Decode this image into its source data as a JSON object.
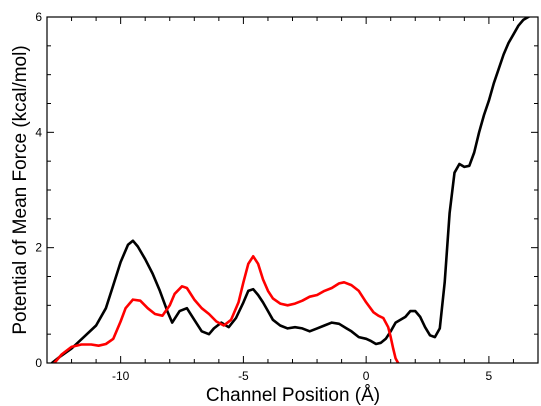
{
  "chart_data": {
    "type": "line",
    "xlabel": "Channel Position (Å)",
    "ylabel": "Potential of Mean Force (kcal/mol)",
    "xlim": [
      -13,
      7
    ],
    "ylim": [
      0,
      6
    ],
    "x_ticks": [
      -10,
      -5,
      0,
      5
    ],
    "x_tick_labels": [
      "-10",
      "-5",
      "0",
      "5"
    ],
    "y_ticks": [
      0,
      2,
      4,
      6
    ],
    "y_tick_labels": [
      "0",
      "2",
      "4",
      "6"
    ],
    "grid": false,
    "series": [
      {
        "color": "#000000",
        "x": [
          -12.8,
          -12.5,
          -12.0,
          -11.5,
          -11.0,
          -10.6,
          -10.3,
          -10.0,
          -9.7,
          -9.5,
          -9.3,
          -9.0,
          -8.7,
          -8.4,
          -8.1,
          -7.9,
          -7.6,
          -7.3,
          -7.0,
          -6.7,
          -6.4,
          -6.2,
          -5.9,
          -5.6,
          -5.3,
          -5.0,
          -4.8,
          -4.6,
          -4.4,
          -4.2,
          -4.0,
          -3.8,
          -3.5,
          -3.2,
          -2.9,
          -2.6,
          -2.3,
          -2.0,
          -1.7,
          -1.4,
          -1.1,
          -0.8,
          -0.6,
          -0.3,
          0.0,
          0.2,
          0.4,
          0.6,
          0.8,
          1.0,
          1.2,
          1.4,
          1.6,
          1.8,
          2.0,
          2.2,
          2.4,
          2.6,
          2.8,
          3.0,
          3.2,
          3.4,
          3.6,
          3.8,
          4.0,
          4.2,
          4.4,
          4.6,
          4.8,
          5.0,
          5.2,
          5.4,
          5.6,
          5.8,
          6.0,
          6.2,
          6.4,
          6.6,
          6.8,
          7.0
        ],
        "y": [
          0.0,
          0.1,
          0.25,
          0.45,
          0.65,
          0.95,
          1.35,
          1.75,
          2.05,
          2.12,
          2.02,
          1.8,
          1.55,
          1.25,
          0.9,
          0.7,
          0.9,
          0.95,
          0.75,
          0.55,
          0.5,
          0.6,
          0.7,
          0.62,
          0.78,
          1.05,
          1.25,
          1.28,
          1.18,
          1.05,
          0.9,
          0.75,
          0.65,
          0.6,
          0.62,
          0.6,
          0.55,
          0.6,
          0.65,
          0.7,
          0.68,
          0.6,
          0.55,
          0.45,
          0.42,
          0.38,
          0.33,
          0.35,
          0.42,
          0.55,
          0.7,
          0.75,
          0.8,
          0.9,
          0.9,
          0.8,
          0.62,
          0.48,
          0.45,
          0.6,
          1.4,
          2.6,
          3.3,
          3.45,
          3.4,
          3.42,
          3.65,
          4.0,
          4.3,
          4.55,
          4.85,
          5.1,
          5.35,
          5.55,
          5.7,
          5.85,
          5.95,
          6.0,
          6.05,
          6.1
        ]
      },
      {
        "color": "#ff0000",
        "x": [
          -12.7,
          -12.4,
          -12.0,
          -11.6,
          -11.2,
          -10.9,
          -10.6,
          -10.3,
          -10.0,
          -9.8,
          -9.5,
          -9.2,
          -8.9,
          -8.6,
          -8.3,
          -8.0,
          -7.8,
          -7.5,
          -7.3,
          -7.0,
          -6.7,
          -6.4,
          -6.1,
          -5.8,
          -5.5,
          -5.2,
          -5.0,
          -4.8,
          -4.6,
          -4.4,
          -4.2,
          -4.0,
          -3.8,
          -3.5,
          -3.2,
          -2.9,
          -2.6,
          -2.3,
          -2.0,
          -1.7,
          -1.4,
          -1.1,
          -0.9,
          -0.6,
          -0.3,
          0.0,
          0.3,
          0.5,
          0.7,
          0.9,
          1.0,
          1.1,
          1.2,
          1.3
        ],
        "y": [
          0.0,
          0.15,
          0.28,
          0.32,
          0.32,
          0.3,
          0.33,
          0.42,
          0.72,
          0.95,
          1.1,
          1.08,
          0.95,
          0.85,
          0.82,
          1.0,
          1.2,
          1.33,
          1.3,
          1.1,
          0.95,
          0.85,
          0.72,
          0.65,
          0.75,
          1.05,
          1.4,
          1.72,
          1.85,
          1.72,
          1.45,
          1.25,
          1.12,
          1.03,
          1.0,
          1.03,
          1.08,
          1.15,
          1.18,
          1.25,
          1.3,
          1.38,
          1.4,
          1.35,
          1.25,
          1.05,
          0.88,
          0.82,
          0.78,
          0.62,
          0.45,
          0.25,
          0.08,
          0.0
        ]
      }
    ]
  }
}
